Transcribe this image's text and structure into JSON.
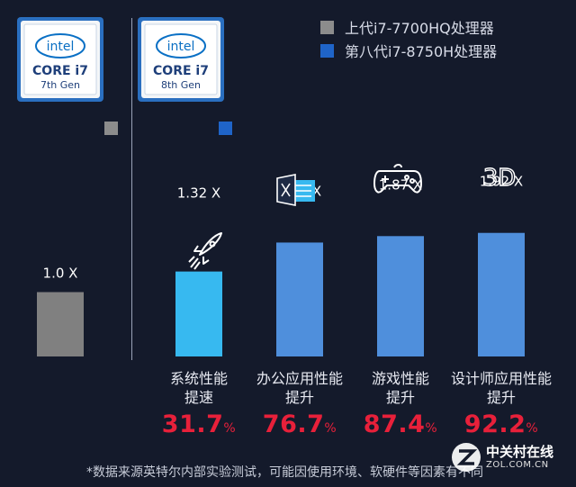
{
  "legend": [
    {
      "label": "上代i7-7700HQ处理器",
      "color": "#8c8c8c"
    },
    {
      "label": "第八代i7-8750H处理器",
      "color": "#1f64c8"
    }
  ],
  "badges": [
    {
      "brand": "intel",
      "line1": "CORE i7",
      "line2": "7th Gen"
    },
    {
      "brand": "intel",
      "line1": "CORE i7",
      "line2": "8th Gen"
    }
  ],
  "chart_data": {
    "type": "bar",
    "baseline": {
      "value": 1.0,
      "label": "1.0 X",
      "color": "#808080"
    },
    "categories": [
      "系统性能提速",
      "办公应用性能提升",
      "游戏性能提升",
      "设计师应用性能提升"
    ],
    "category_lines": [
      [
        "系统性能",
        "提速"
      ],
      [
        "办公应用性能",
        "提升"
      ],
      [
        "游戏性能",
        "提升"
      ],
      [
        "设计师应用性能",
        "提升"
      ]
    ],
    "values": [
      1.32,
      1.77,
      1.87,
      1.92
    ],
    "value_labels": [
      "1.32 X",
      "1.77 X",
      "1.87 X",
      "1.92 X"
    ],
    "percent_values": [
      "31.7",
      "76.7",
      "87.4",
      "92.2"
    ],
    "percent_unit": "%",
    "bar_colors": [
      "#37b9f0",
      "#4f8fdc",
      "#4f8fdc",
      "#4f8fdc"
    ],
    "icons": [
      "rocket-icon",
      "office-document-icon",
      "gamepad-icon",
      "3d-icon"
    ],
    "title": "",
    "xlabel": "",
    "ylabel": ""
  },
  "footnote": "*数据来源英特尔内部实验测试，可能因使用环境、软硬件等因素有不同",
  "watermark": {
    "name": "中关村在线",
    "url": "ZOL.COM.CN"
  }
}
